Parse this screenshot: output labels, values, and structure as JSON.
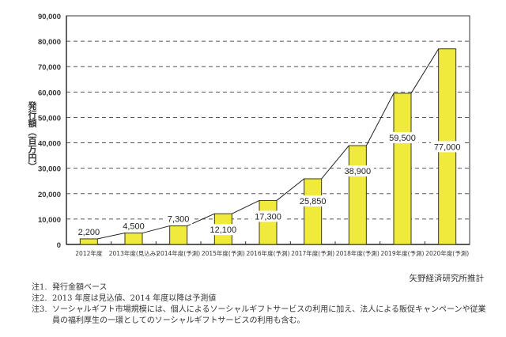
{
  "chart_data": {
    "type": "bar",
    "title": "",
    "xlabel": "",
    "ylabel": "発行額（百万円）",
    "ylim": [
      0,
      90000
    ],
    "yticks": [
      0,
      10000,
      20000,
      30000,
      40000,
      50000,
      60000,
      70000,
      80000,
      90000
    ],
    "ytick_labels": [
      "0",
      "10,000",
      "20,000",
      "30,000",
      "40,000",
      "50,000",
      "60,000",
      "70,000",
      "80,000",
      "90,000"
    ],
    "grid": "horizontal-dashed",
    "categories": [
      "2012年度",
      "2013年度(見込み)",
      "2014年度(予測)",
      "2015年度(予測)",
      "2016年度(予測)",
      "2017年度(予測)",
      "2018年度(予測)",
      "2019年度(予測)",
      "2020年度(予測)"
    ],
    "values": [
      2200,
      4500,
      7300,
      12100,
      17300,
      25850,
      38900,
      59500,
      77000
    ],
    "value_labels": [
      "2,200",
      "4,500",
      "7,300",
      "12,100",
      "17,300",
      "25,850",
      "38,900",
      "59,500",
      "77,000"
    ],
    "bar_color": "#f0ea3c",
    "connector_lines": true
  },
  "source": "矢野経済研究所推計",
  "notes": [
    {
      "label": "注1.",
      "text": "発行金額ベース"
    },
    {
      "label": "注2.",
      "text": "2013 年度は見込値、2014 年度以降は予測値"
    },
    {
      "label": "注3.",
      "text": "ソーシャルギフト市場規模には、個人によるソーシャルギフトサービスの利用に加え、法人による販促キャンペーンや従業員の福利厚生の一環としてのソーシャルギフトサービスの利用も含む。"
    }
  ]
}
